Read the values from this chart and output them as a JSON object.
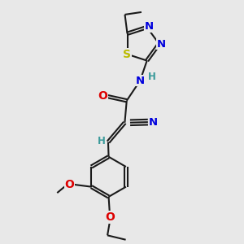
{
  "bg_color": "#e8e8e8",
  "bond_color": "#1a1a1a",
  "bond_lw": 1.5,
  "dbo": 0.055,
  "fs": 8.5,
  "colors": {
    "N": "#0000dd",
    "O": "#dd0000",
    "S": "#bbbb00",
    "C": "#1a1a1a",
    "H": "#3a9a9a",
    "tripleN": "#0000dd"
  },
  "figsize": [
    3.0,
    3.0
  ],
  "dpi": 100,
  "xlim": [
    0,
    10
  ],
  "ylim": [
    0,
    10
  ]
}
